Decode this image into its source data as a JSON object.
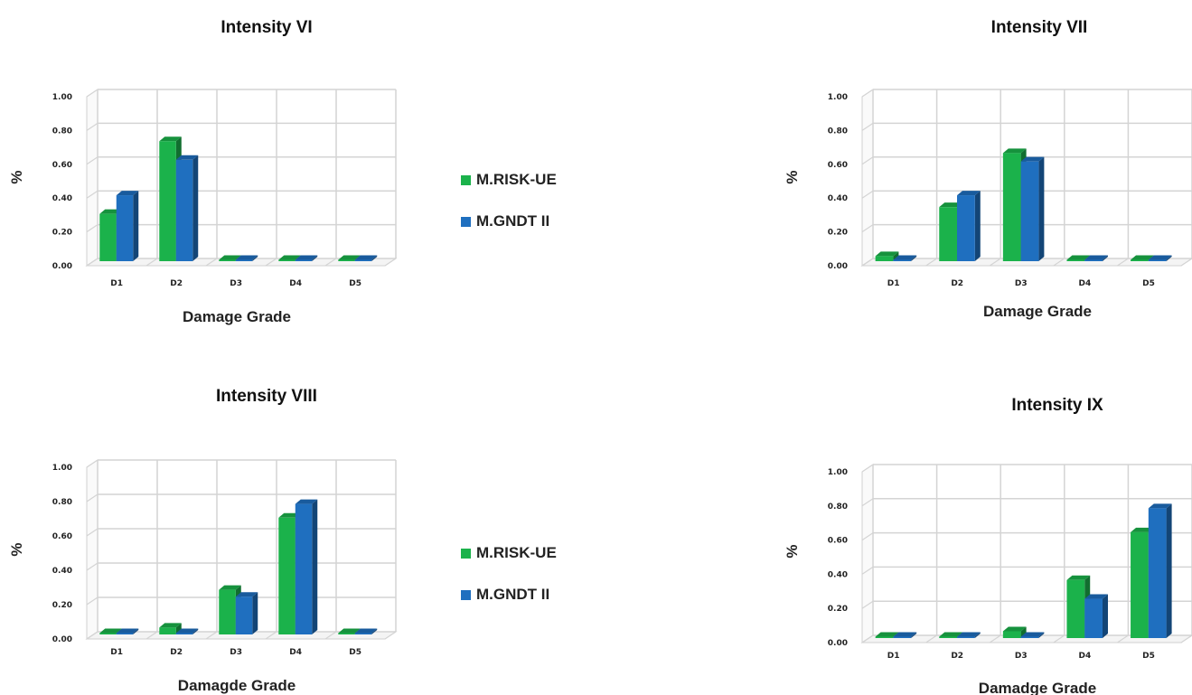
{
  "colors": {
    "risk_ue": "#1bb24b",
    "gndt": "#1f6fbf"
  },
  "legends": [
    {
      "items": [
        {
          "label": "M.RISK-UE",
          "color_key": "risk_ue"
        },
        {
          "label": "M.GNDT II",
          "color_key": "gndt"
        }
      ]
    },
    {
      "items": [
        {
          "label": "M.RISK-UE",
          "color_key": "risk_ue"
        },
        {
          "label": "M.GNDT II",
          "color_key": "gndt"
        }
      ]
    }
  ],
  "chart_data": [
    {
      "type": "bar",
      "title": "Intensity   VI",
      "xlabel": "Damage Grade",
      "ylabel": "%",
      "ylim": [
        0,
        1
      ],
      "yticks": [
        "0.00",
        "0.20",
        "0.40",
        "0.60",
        "0.80",
        "1.00"
      ],
      "categories": [
        "D1",
        "D2",
        "D3",
        "D4",
        "D5"
      ],
      "series": [
        {
          "name": "M.RISK-UE",
          "color_key": "risk_ue",
          "values": [
            0.28,
            0.71,
            0.0,
            0.0,
            0.0
          ]
        },
        {
          "name": "M.GNDT II",
          "color_key": "gndt",
          "values": [
            0.39,
            0.6,
            0.0,
            0.0,
            0.0
          ]
        }
      ]
    },
    {
      "type": "bar",
      "title": "Intensity   VII",
      "xlabel": "Damage Grade",
      "ylabel": "%",
      "ylim": [
        0,
        1
      ],
      "yticks": [
        "0.00",
        "0.20",
        "0.40",
        "0.60",
        "0.80",
        "1.00"
      ],
      "categories": [
        "D1",
        "D2",
        "D3",
        "D4",
        "D5"
      ],
      "series": [
        {
          "name": "M.RISK-UE",
          "color_key": "risk_ue",
          "values": [
            0.03,
            0.32,
            0.64,
            0.0,
            0.0
          ]
        },
        {
          "name": "M.GNDT II",
          "color_key": "gndt",
          "values": [
            0.0,
            0.39,
            0.59,
            0.0,
            0.0
          ]
        }
      ]
    },
    {
      "type": "bar",
      "title": "Intensity   VIII",
      "xlabel": "Damagde Grade",
      "ylabel": "%",
      "ylim": [
        0,
        1
      ],
      "yticks": [
        "0.00",
        "0.20",
        "0.40",
        "0.60",
        "0.80",
        "1.00"
      ],
      "categories": [
        "D1",
        "D2",
        "D3",
        "D4",
        "D5"
      ],
      "series": [
        {
          "name": "M.RISK-UE",
          "color_key": "risk_ue",
          "values": [
            0.0,
            0.04,
            0.26,
            0.68,
            0.0
          ]
        },
        {
          "name": "M.GNDT II",
          "color_key": "gndt",
          "values": [
            0.0,
            0.0,
            0.22,
            0.76,
            0.0
          ]
        }
      ]
    },
    {
      "type": "bar",
      "title": "Intensity   IX",
      "xlabel": "Damadge Grade",
      "ylabel": "%",
      "ylim": [
        0,
        1
      ],
      "yticks": [
        "0.00",
        "0.20",
        "0.40",
        "0.60",
        "0.80",
        "1.00"
      ],
      "categories": [
        "D1",
        "D2",
        "D3",
        "D4",
        "D5"
      ],
      "series": [
        {
          "name": "M.RISK-UE",
          "color_key": "risk_ue",
          "values": [
            0.0,
            0.0,
            0.04,
            0.34,
            0.62
          ]
        },
        {
          "name": "M.GNDT II",
          "color_key": "gndt",
          "values": [
            0.0,
            0.0,
            0.0,
            0.23,
            0.76
          ]
        }
      ]
    }
  ]
}
